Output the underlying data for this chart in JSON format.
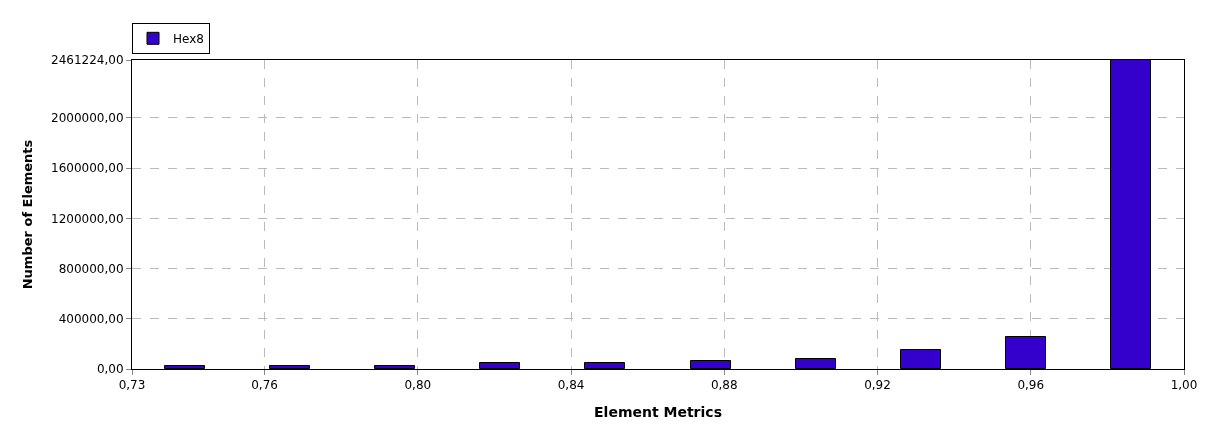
{
  "chart_data": {
    "type": "histogram",
    "xlabel": "Element Metrics",
    "ylabel": "Number of Elements",
    "bins": [
      0.7254,
      0.7529,
      0.7803,
      0.8078,
      0.8352,
      0.8627,
      0.8902,
      0.9176,
      0.9451,
      0.9725,
      1.0
    ],
    "series": [
      {
        "name": "Hex8",
        "color": "#3300cc",
        "values": [
          22000,
          21000,
          21000,
          46000,
          46000,
          62000,
          83000,
          154000,
          258000,
          2461224
        ]
      }
    ],
    "xlim": [
      0.7254,
      1.0
    ],
    "xticks": [
      {
        "value": 0.7254,
        "label": "0,73"
      },
      {
        "value": 0.76,
        "label": "0,76"
      },
      {
        "value": 0.8,
        "label": "0,80"
      },
      {
        "value": 0.84,
        "label": "0,84"
      },
      {
        "value": 0.88,
        "label": "0,88"
      },
      {
        "value": 0.92,
        "label": "0,92"
      },
      {
        "value": 0.96,
        "label": "0,96"
      },
      {
        "value": 1.0,
        "label": "1,00"
      }
    ],
    "ylim": [
      0,
      2461224
    ],
    "yticks": [
      {
        "value": 0,
        "label": "0,00"
      },
      {
        "value": 400000,
        "label": "400000,00"
      },
      {
        "value": 800000,
        "label": "800000,00"
      },
      {
        "value": 1200000,
        "label": "1200000,00"
      },
      {
        "value": 1600000,
        "label": "1600000,00"
      },
      {
        "value": 2000000,
        "label": "2000000,00"
      },
      {
        "value": 2461224,
        "label": "2461224,00"
      }
    ],
    "grid": true,
    "legend": "top left"
  }
}
